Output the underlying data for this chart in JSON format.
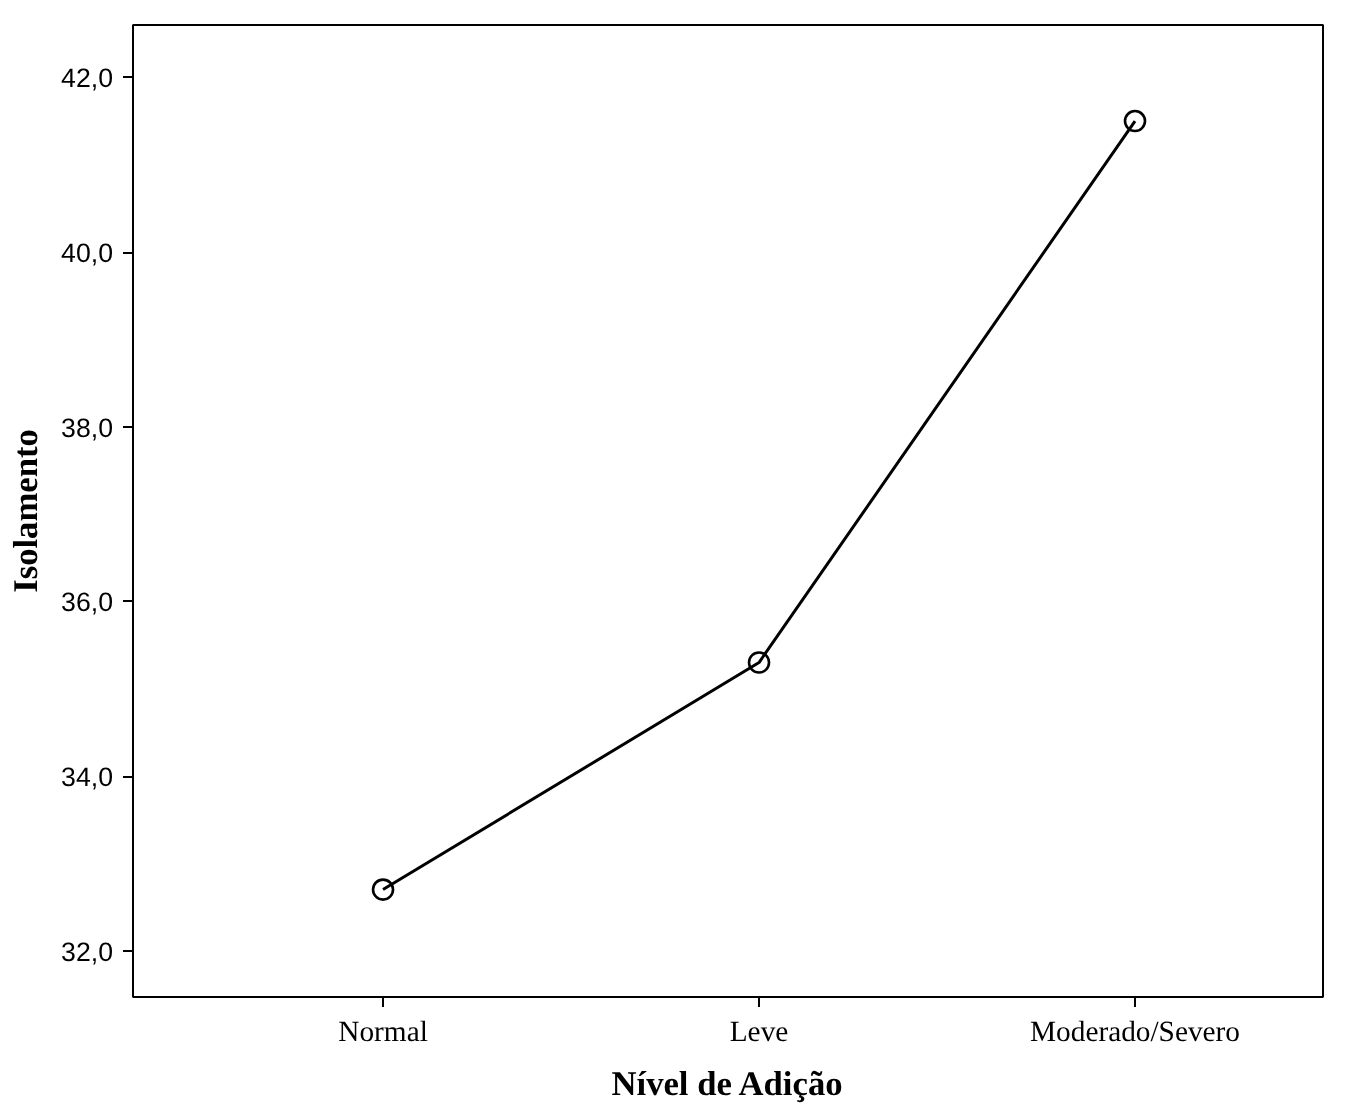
{
  "chart_data": {
    "type": "line",
    "xlabel": "Nível de Adição",
    "ylabel": "Isolamento",
    "categories": [
      "Normal",
      "Leve",
      "Moderado/Severo"
    ],
    "series": [
      {
        "color": "#000000",
        "values": [
          32.7,
          35.3,
          41.5
        ]
      }
    ],
    "ylim": [
      31.47,
      42.6
    ],
    "yticks": [
      {
        "value": 32,
        "label": "32,0"
      },
      {
        "value": 34,
        "label": "34,0"
      },
      {
        "value": 36,
        "label": "36,0"
      },
      {
        "value": 38,
        "label": "38,0"
      },
      {
        "value": 40,
        "label": "40,0"
      },
      {
        "value": 42,
        "label": "42,0"
      }
    ],
    "marker": "circle",
    "line_style": "solid"
  }
}
